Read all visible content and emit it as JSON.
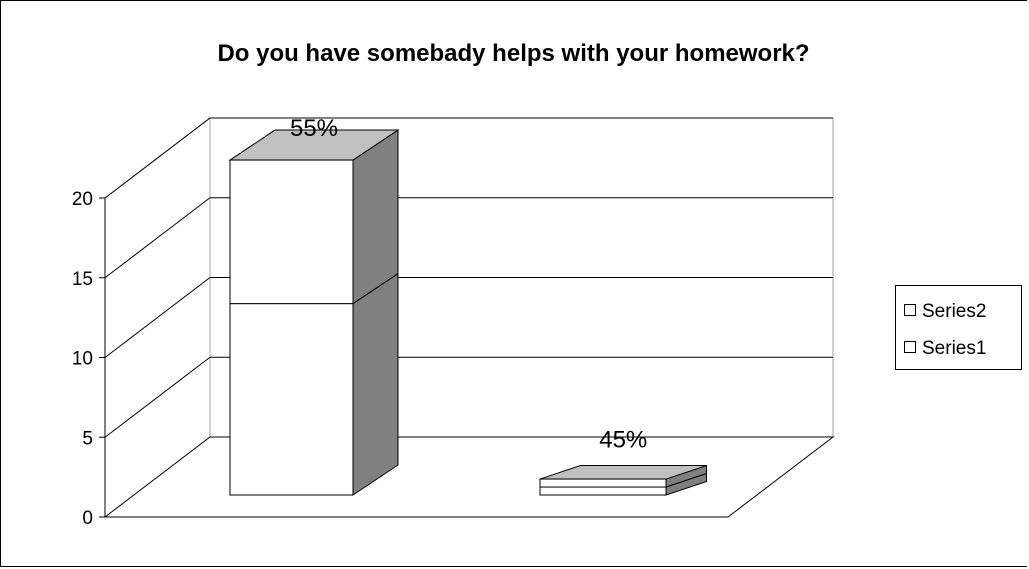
{
  "chart_data": {
    "type": "bar",
    "title": "Do you have somebady helps with your homework?",
    "categories": [
      "",
      ""
    ],
    "series": [
      {
        "name": "Series1",
        "values": [
          12,
          0.5
        ]
      },
      {
        "name": "Series2",
        "values": [
          9,
          0.5
        ]
      }
    ],
    "data_labels": [
      "55%",
      "45%"
    ],
    "y_ticks": [
      "0",
      "5",
      "10",
      "15",
      "20"
    ],
    "ylim": [
      0,
      20
    ],
    "grid": true,
    "legend_position": "right",
    "colors": {
      "bar_front": "#ffffff",
      "bar_top": "#c0c0c0",
      "bar_side": "#808080",
      "axis": "#000000"
    }
  }
}
